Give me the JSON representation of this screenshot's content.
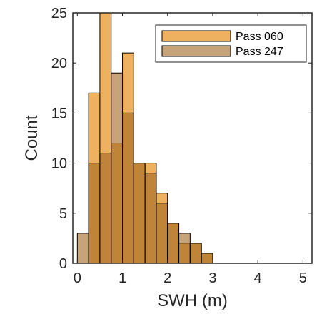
{
  "chart_data": {
    "type": "bar",
    "xlabel": "SWH (m)",
    "ylabel": "Count",
    "xlim": [
      -0.1,
      5.2
    ],
    "ylim": [
      0,
      25
    ],
    "xticks": [
      0,
      1,
      2,
      3,
      4,
      5
    ],
    "yticks": [
      0,
      5,
      10,
      15,
      20,
      25
    ],
    "bin_width": 0.25,
    "grid": false,
    "legend_position": "top-right",
    "series": [
      {
        "name": "Pass 060",
        "color": "#EDB15F",
        "alpha": 1.0,
        "bins": [
          {
            "x0": 0.25,
            "count": 17
          },
          {
            "x0": 0.5,
            "count": 25
          },
          {
            "x0": 0.75,
            "count": 12
          },
          {
            "x0": 1.0,
            "count": 21
          },
          {
            "x0": 1.25,
            "count": 10
          },
          {
            "x0": 1.5,
            "count": 10
          },
          {
            "x0": 1.75,
            "count": 7
          },
          {
            "x0": 2.0,
            "count": 4
          },
          {
            "x0": 2.25,
            "count": 2
          },
          {
            "x0": 2.5,
            "count": 2
          },
          {
            "x0": 2.75,
            "count": 1
          }
        ]
      },
      {
        "name": "Pass 247",
        "color": "#A0661E",
        "alpha": 0.6,
        "bins": [
          {
            "x0": 0.0,
            "count": 3
          },
          {
            "x0": 0.25,
            "count": 10
          },
          {
            "x0": 0.5,
            "count": 11
          },
          {
            "x0": 0.75,
            "count": 19
          },
          {
            "x0": 1.0,
            "count": 15
          },
          {
            "x0": 1.25,
            "count": 10
          },
          {
            "x0": 1.5,
            "count": 9
          },
          {
            "x0": 1.75,
            "count": 6
          },
          {
            "x0": 2.0,
            "count": 4
          },
          {
            "x0": 2.25,
            "count": 3
          },
          {
            "x0": 2.5,
            "count": 2
          },
          {
            "x0": 2.75,
            "count": 1
          }
        ]
      }
    ]
  }
}
